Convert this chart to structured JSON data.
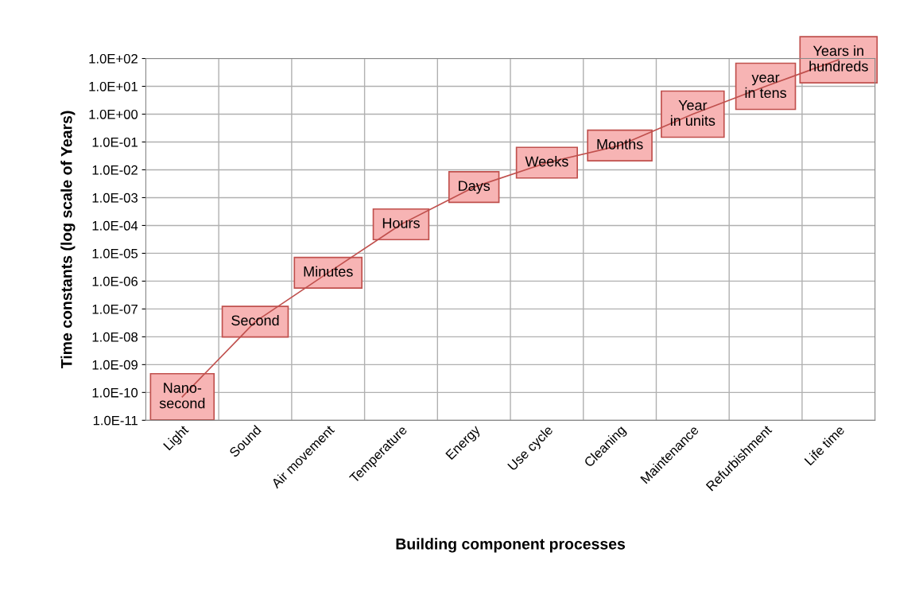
{
  "chart_data": {
    "type": "line",
    "xlabel": "Building component processes",
    "ylabel": "Time constants (log scale of Years)",
    "categories": [
      "Light",
      "Sound",
      "Air movement",
      "Temperature",
      "Energy",
      "Use cycle",
      "Cleaning",
      "Maintenance",
      "Refurbishment",
      "Life time"
    ],
    "series": [
      {
        "color": "#c0504d",
        "values": [
          7e-11,
          3.5e-08,
          2e-06,
          0.00011,
          0.0024,
          0.018,
          0.075,
          1,
          10,
          90
        ],
        "value_labels": [
          "Nano-\nsecond",
          "Second",
          "Minutes",
          "Hours",
          "Days",
          "Weeks",
          "Months",
          "Year\nin units",
          "year\nin tens",
          "Years in\nhundreds"
        ]
      }
    ],
    "log": "y",
    "ylim": [
      1e-11,
      100
    ],
    "yticks": [
      {
        "value": 1e-11,
        "label": "1.0E-11"
      },
      {
        "value": 1e-10,
        "label": "1.0E-10"
      },
      {
        "value": 1e-09,
        "label": "1.0E-09"
      },
      {
        "value": 1e-08,
        "label": "1.0E-08"
      },
      {
        "value": 1e-07,
        "label": "1.0E-07"
      },
      {
        "value": 1e-06,
        "label": "1.0E-06"
      },
      {
        "value": 1e-05,
        "label": "1.0E-05"
      },
      {
        "value": 0.0001,
        "label": "1.0E-04"
      },
      {
        "value": 0.001,
        "label": "1.0E-03"
      },
      {
        "value": 0.01,
        "label": "1.0E-02"
      },
      {
        "value": 0.1,
        "label": "1.0E-01"
      },
      {
        "value": 1,
        "label": "1.0E+00"
      },
      {
        "value": 10,
        "label": "1.0E+01"
      },
      {
        "value": 100,
        "label": "1.0E+02"
      }
    ],
    "grid": true,
    "line_style": "solid"
  }
}
